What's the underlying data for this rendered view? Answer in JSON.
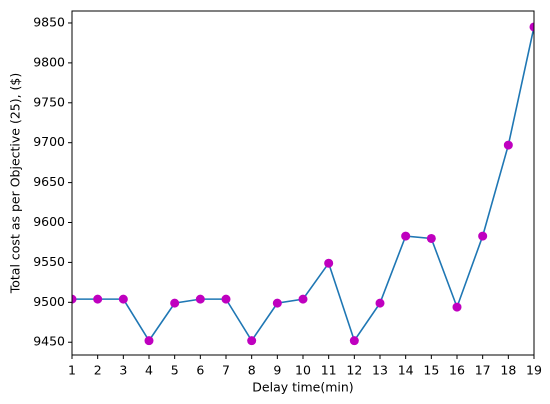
{
  "chart_data": {
    "type": "line",
    "x_label": "Delay time(min)",
    "y_label": "Total cost as per Objective (25), ($)",
    "x": [
      1,
      2,
      3,
      4,
      5,
      6,
      7,
      8,
      9,
      10,
      11,
      12,
      13,
      14,
      15,
      16,
      17,
      18,
      19
    ],
    "series": [
      {
        "color": "#1f77b4",
        "marker_color": "#bf00bf",
        "values": [
          9504,
          9504,
          9504,
          9452,
          9499,
          9504,
          9504,
          9452,
          9499,
          9504,
          9549,
          9452,
          9499,
          9583,
          9580,
          9494,
          9583,
          9697,
          9845
        ]
      }
    ],
    "xlim": [
      1,
      19
    ],
    "xticks": [
      1,
      2,
      3,
      4,
      5,
      6,
      7,
      8,
      9,
      10,
      11,
      12,
      13,
      14,
      15,
      16,
      17,
      18,
      19
    ],
    "ylim": [
      9434,
      9865
    ],
    "yticks": [
      9450,
      9500,
      9550,
      9600,
      9650,
      9700,
      9750,
      9800,
      9850
    ],
    "grid": false
  }
}
